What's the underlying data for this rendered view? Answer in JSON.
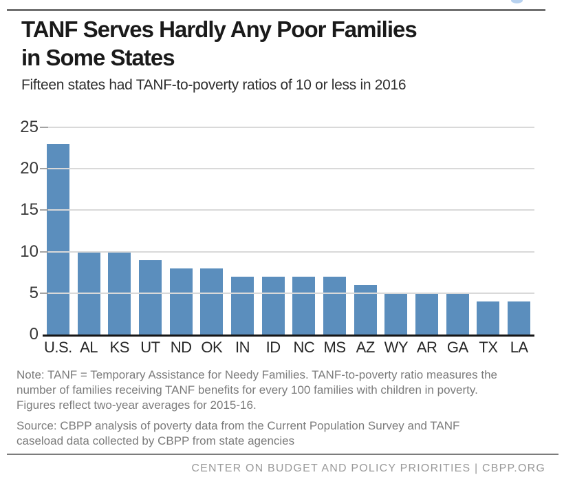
{
  "header": {
    "title_line1": "TANF Serves Hardly Any Poor Families",
    "title_line2": "in Some States",
    "subtitle": "Fifteen states had TANF-to-poverty ratios of 10 or less in 2016"
  },
  "chart_data": {
    "type": "bar",
    "title": "TANF Serves Hardly Any Poor Families in Some States",
    "subtitle": "Fifteen states had TANF-to-poverty ratios of 10 or less in 2016",
    "categories": [
      "U.S.",
      "AL",
      "KS",
      "UT",
      "ND",
      "OK",
      "IN",
      "ID",
      "NC",
      "MS",
      "AZ",
      "WY",
      "AR",
      "GA",
      "TX",
      "LA"
    ],
    "values": [
      23,
      10,
      10,
      9,
      8,
      8,
      7,
      7,
      7,
      7,
      6,
      5,
      5,
      5,
      4,
      4
    ],
    "xlabel": "",
    "ylabel": "",
    "ylim": [
      0,
      25
    ],
    "yticks": [
      0,
      5,
      10,
      15,
      20,
      25
    ],
    "grid": true,
    "legend": "none",
    "bar_color": "#5b8ebd",
    "gridline_color": "#d9d9d9",
    "axis_color": "#161616"
  },
  "notes": {
    "note_lines": [
      "Note: TANF = Temporary Assistance for Needy Families. TANF-to-poverty ratio measures the",
      "number of families receiving TANF benefits for every 100 families with children in poverty.",
      "Figures reflect two-year averages for 2015-16."
    ],
    "source_lines": [
      "Source: CBPP analysis of poverty data from the Current Population Survey and TANF",
      "caseload data collected by CBPP from state agencies"
    ]
  },
  "footer": {
    "text": "CENTER ON BUDGET AND POLICY PRIORITIES | CBPP.ORG"
  }
}
